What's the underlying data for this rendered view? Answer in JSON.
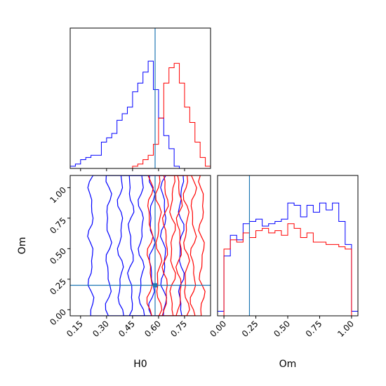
{
  "chart_data": [
    {
      "type": "histogram",
      "panel": "H0 marginal",
      "truth": 0.58,
      "xlim": [
        0.09,
        0.9
      ],
      "series": [
        {
          "name": "",
          "color": "#0000ff",
          "bin_edges": [
            0.09,
            0.12,
            0.15,
            0.18,
            0.21,
            0.24,
            0.27,
            0.3,
            0.33,
            0.36,
            0.39,
            0.42,
            0.45,
            0.48,
            0.51,
            0.54,
            0.57,
            0.6,
            0.63,
            0.66,
            0.69,
            0.72
          ],
          "counts": [
            0.02,
            0.04,
            0.08,
            0.1,
            0.12,
            0.12,
            0.24,
            0.28,
            0.32,
            0.44,
            0.5,
            0.56,
            0.7,
            0.78,
            0.88,
            0.98,
            0.72,
            0.46,
            0.3,
            0.18,
            0.02
          ]
        },
        {
          "name": "",
          "color": "#ff0000",
          "bin_edges": [
            0.45,
            0.48,
            0.51,
            0.54,
            0.57,
            0.6,
            0.63,
            0.66,
            0.69,
            0.72,
            0.75,
            0.78,
            0.81,
            0.84,
            0.87,
            0.9
          ],
          "counts": [
            0.02,
            0.04,
            0.08,
            0.12,
            0.22,
            0.46,
            0.78,
            0.92,
            0.96,
            0.78,
            0.56,
            0.42,
            0.24,
            0.1,
            0.02
          ]
        }
      ]
    },
    {
      "type": "contour",
      "panel": "H0 vs Om",
      "xlabel": "H0",
      "ylabel": "Om",
      "xlim": [
        0.09,
        0.9
      ],
      "ylim": [
        -0.05,
        1.1
      ],
      "xticks": [
        "0.15",
        "0.30",
        "0.45",
        "0.60",
        "0.75"
      ],
      "yticks": [
        "0.00",
        "0.25",
        "0.50",
        "0.75",
        "1.00"
      ],
      "truth": {
        "x": 0.58,
        "y": 0.2
      },
      "series": [
        {
          "name": "",
          "color": "#0000ff",
          "center": 0.47,
          "half_widths": [
            0.03,
            0.09,
            0.16,
            0.26
          ]
        },
        {
          "name": "",
          "color": "#ff0000",
          "center": 0.7,
          "half_widths": [
            0.02,
            0.06,
            0.1,
            0.15
          ]
        }
      ]
    },
    {
      "type": "histogram",
      "panel": "Om marginal",
      "xlabel": "Om",
      "xlim": [
        -0.05,
        1.05
      ],
      "xticks": [
        "0.00",
        "0.25",
        "0.50",
        "0.75",
        "1.00"
      ],
      "truth": 0.2,
      "series": [
        {
          "name": "",
          "color": "#0000ff",
          "bin_edges": [
            -0.05,
            0.0,
            0.05,
            0.1,
            0.15,
            0.2,
            0.25,
            0.3,
            0.35,
            0.4,
            0.45,
            0.5,
            0.55,
            0.6,
            0.65,
            0.7,
            0.75,
            0.8,
            0.85,
            0.9,
            0.95,
            1.0,
            1.05
          ],
          "counts": [
            0.04,
            0.52,
            0.7,
            0.66,
            0.8,
            0.82,
            0.84,
            0.78,
            0.8,
            0.82,
            0.84,
            0.98,
            0.96,
            0.86,
            0.96,
            0.9,
            0.98,
            0.92,
            0.98,
            0.82,
            0.62,
            0.04
          ]
        },
        {
          "name": "",
          "color": "#ff0000",
          "bin_edges": [
            0.0,
            0.05,
            0.1,
            0.15,
            0.2,
            0.25,
            0.3,
            0.35,
            0.4,
            0.45,
            0.5,
            0.55,
            0.6,
            0.65,
            0.7,
            0.75,
            0.8,
            0.85,
            0.9,
            0.95,
            1.0
          ],
          "counts": [
            0.58,
            0.66,
            0.64,
            0.72,
            0.68,
            0.74,
            0.76,
            0.72,
            0.74,
            0.7,
            0.8,
            0.76,
            0.68,
            0.72,
            0.64,
            0.64,
            0.62,
            0.62,
            0.6,
            0.58
          ]
        }
      ]
    }
  ]
}
